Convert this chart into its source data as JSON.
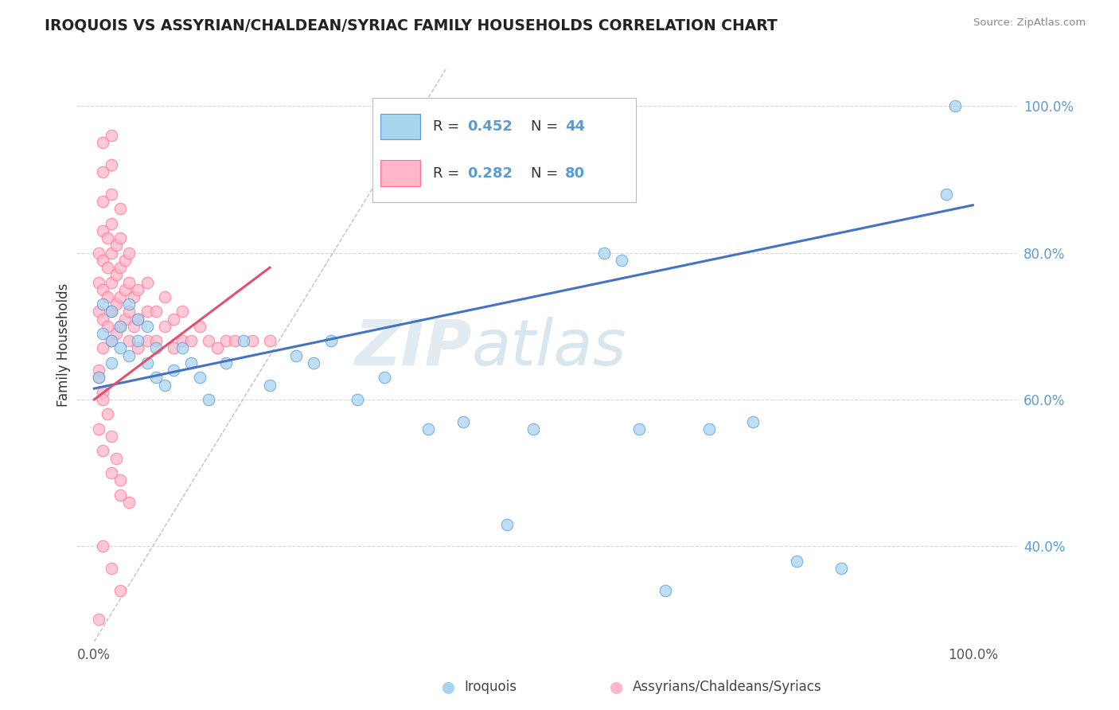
{
  "title": "IROQUOIS VS ASSYRIAN/CHALDEAN/SYRIAC FAMILY HOUSEHOLDS CORRELATION CHART",
  "source": "Source: ZipAtlas.com",
  "ylabel": "Family Households",
  "color_iroquois_fill": "#A8D4F0",
  "color_iroquois_edge": "#5B9BD5",
  "color_assyrian_fill": "#FFB6C8",
  "color_assyrian_edge": "#FF7096",
  "color_iroquois_line": "#4472C4",
  "color_assyrian_line": "#E05070",
  "color_dashed": "#BBBBBB",
  "color_grid": "#CCCCCC",
  "color_ytick": "#5B9BD5",
  "color_xtick": "#555555",
  "color_title": "#222222",
  "color_source": "#888888",
  "color_ylabel": "#333333",
  "color_watermark": "#C8DCF0",
  "watermark_zip": "ZIP",
  "watermark_atlas": "atlas",
  "ytick_vals": [
    0.4,
    0.6,
    0.8,
    1.0
  ],
  "ytick_labels": [
    "40.0%",
    "60.0%",
    "80.0%",
    "100.0%"
  ],
  "xtick_vals": [
    0.0,
    1.0
  ],
  "xtick_labels": [
    "0.0%",
    "100.0%"
  ],
  "xlim": [
    -0.02,
    1.05
  ],
  "ylim": [
    0.27,
    1.08
  ],
  "legend_items": [
    {
      "label_r": "R = ",
      "val_r": "0.452",
      "label_n": "  N = ",
      "val_n": "44"
    },
    {
      "label_r": "R = ",
      "val_r": "0.282",
      "label_n": "  N = ",
      "val_n": "80"
    }
  ],
  "bottom_legend": [
    "Iroquois",
    "Assyrians/Chaldeans/Syriacs"
  ],
  "iroquois_x": [
    0.005,
    0.01,
    0.01,
    0.02,
    0.02,
    0.02,
    0.03,
    0.03,
    0.04,
    0.04,
    0.05,
    0.05,
    0.06,
    0.06,
    0.07,
    0.07,
    0.08,
    0.09,
    0.1,
    0.11,
    0.12,
    0.13,
    0.15,
    0.17,
    0.2,
    0.23,
    0.25,
    0.27,
    0.3,
    0.33,
    0.38,
    0.42,
    0.47,
    0.5,
    0.58,
    0.6,
    0.62,
    0.65,
    0.7,
    0.75,
    0.8,
    0.85,
    0.97,
    0.98
  ],
  "iroquois_y": [
    0.63,
    0.69,
    0.73,
    0.65,
    0.68,
    0.72,
    0.67,
    0.7,
    0.66,
    0.73,
    0.68,
    0.71,
    0.7,
    0.65,
    0.63,
    0.67,
    0.62,
    0.64,
    0.67,
    0.65,
    0.63,
    0.6,
    0.65,
    0.68,
    0.62,
    0.66,
    0.65,
    0.68,
    0.6,
    0.63,
    0.56,
    0.57,
    0.43,
    0.56,
    0.8,
    0.79,
    0.56,
    0.34,
    0.56,
    0.57,
    0.38,
    0.37,
    0.88,
    1.0
  ],
  "assyrian_x": [
    0.005,
    0.005,
    0.005,
    0.01,
    0.01,
    0.01,
    0.01,
    0.01,
    0.01,
    0.01,
    0.01,
    0.015,
    0.015,
    0.015,
    0.015,
    0.02,
    0.02,
    0.02,
    0.02,
    0.02,
    0.02,
    0.02,
    0.02,
    0.025,
    0.025,
    0.025,
    0.025,
    0.03,
    0.03,
    0.03,
    0.03,
    0.03,
    0.035,
    0.035,
    0.035,
    0.04,
    0.04,
    0.04,
    0.04,
    0.045,
    0.045,
    0.05,
    0.05,
    0.05,
    0.06,
    0.06,
    0.06,
    0.07,
    0.07,
    0.08,
    0.08,
    0.09,
    0.09,
    0.1,
    0.1,
    0.11,
    0.12,
    0.13,
    0.14,
    0.15,
    0.16,
    0.18,
    0.2,
    0.005,
    0.01,
    0.015,
    0.02,
    0.025,
    0.03,
    0.04,
    0.01,
    0.02,
    0.03,
    0.005,
    0.01,
    0.02,
    0.03,
    0.005,
    0.01,
    0.005
  ],
  "assyrian_y": [
    0.72,
    0.76,
    0.8,
    0.67,
    0.71,
    0.75,
    0.79,
    0.83,
    0.87,
    0.91,
    0.95,
    0.7,
    0.74,
    0.78,
    0.82,
    0.68,
    0.72,
    0.76,
    0.8,
    0.84,
    0.88,
    0.92,
    0.96,
    0.69,
    0.73,
    0.77,
    0.81,
    0.7,
    0.74,
    0.78,
    0.82,
    0.86,
    0.71,
    0.75,
    0.79,
    0.68,
    0.72,
    0.76,
    0.8,
    0.7,
    0.74,
    0.67,
    0.71,
    0.75,
    0.68,
    0.72,
    0.76,
    0.68,
    0.72,
    0.7,
    0.74,
    0.67,
    0.71,
    0.68,
    0.72,
    0.68,
    0.7,
    0.68,
    0.67,
    0.68,
    0.68,
    0.68,
    0.68,
    0.64,
    0.61,
    0.58,
    0.55,
    0.52,
    0.49,
    0.46,
    0.4,
    0.37,
    0.34,
    0.56,
    0.53,
    0.5,
    0.47,
    0.63,
    0.6,
    0.3
  ],
  "iro_line_x": [
    0.0,
    1.0
  ],
  "iro_line_y": [
    0.615,
    0.865
  ],
  "asy_line_x": [
    0.0,
    0.2
  ],
  "asy_line_y": [
    0.6,
    0.78
  ]
}
